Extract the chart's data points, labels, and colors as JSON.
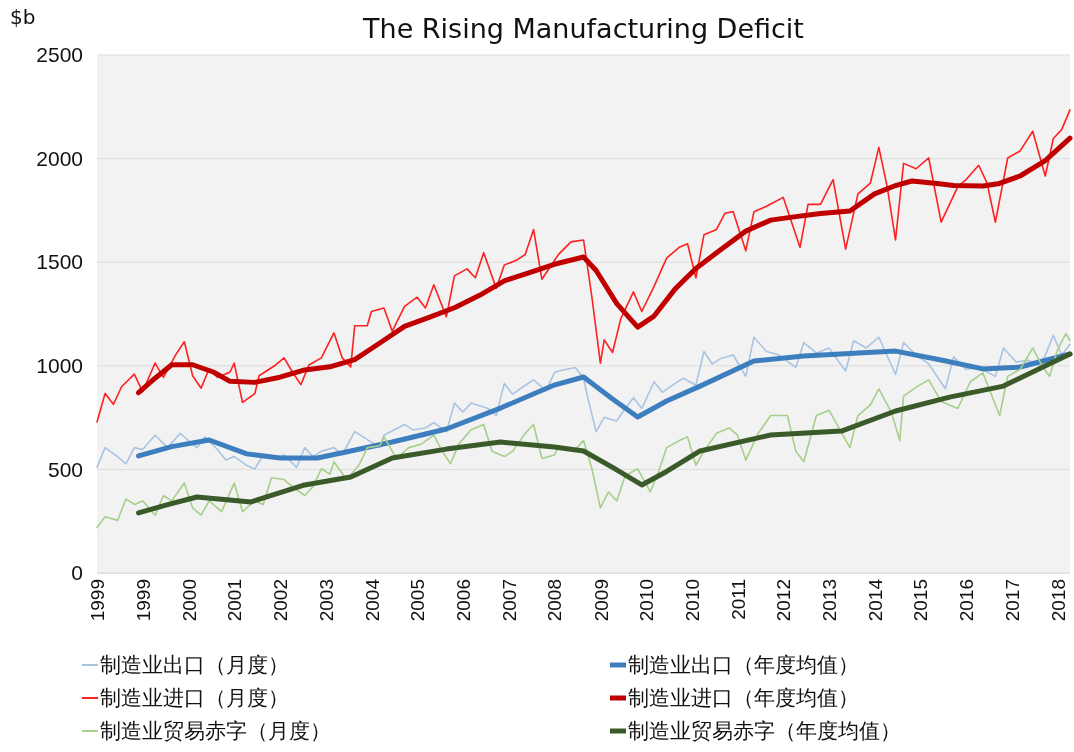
{
  "chart_data": {
    "type": "line",
    "title": "The Rising Manufacturing Deficit",
    "ylabel": "$b",
    "xlim": [
      "1999-01",
      "2018-07"
    ],
    "ylim": [
      0,
      2500
    ],
    "yticks": [
      0,
      500,
      1000,
      1500,
      2000,
      2500
    ],
    "xticks": [
      {
        "value": "1999-01",
        "label": "1999"
      },
      {
        "value": "1999-12",
        "label": "1999"
      },
      {
        "value": "2000-11",
        "label": "2000"
      },
      {
        "value": "2001-10",
        "label": "2001"
      },
      {
        "value": "2002-09",
        "label": "2002"
      },
      {
        "value": "2003-08",
        "label": "2003"
      },
      {
        "value": "2004-07",
        "label": "2004"
      },
      {
        "value": "2005-06",
        "label": "2005"
      },
      {
        "value": "2006-05",
        "label": "2006"
      },
      {
        "value": "2007-04",
        "label": "2007"
      },
      {
        "value": "2008-03",
        "label": "2008"
      },
      {
        "value": "2009-02",
        "label": "2009"
      },
      {
        "value": "2010-01",
        "label": "2010"
      },
      {
        "value": "2010-12",
        "label": "2010"
      },
      {
        "value": "2011-11",
        "label": "2011"
      },
      {
        "value": "2012-10",
        "label": "2012"
      },
      {
        "value": "2013-09",
        "label": "2013"
      },
      {
        "value": "2014-08",
        "label": "2014"
      },
      {
        "value": "2015-07",
        "label": "2015"
      },
      {
        "value": "2016-06",
        "label": "2016"
      },
      {
        "value": "2017-05",
        "label": "2017"
      },
      {
        "value": "2018-04",
        "label": "2018"
      }
    ],
    "grid": "y",
    "legend": "bottom",
    "marker": "none",
    "series": [
      {
        "name": "制造业出口（月度）",
        "color": "#a9c4e3",
        "x": [
          "1999-01",
          "1999-03",
          "1999-06",
          "1999-08",
          "1999-10",
          "1999-12",
          "2000-03",
          "2000-06",
          "2000-09",
          "2000-11",
          "2001-01",
          "2001-03",
          "2001-06",
          "2001-08",
          "2001-10",
          "2002-01",
          "2002-03",
          "2002-05",
          "2002-08",
          "2002-10",
          "2003-01",
          "2003-03",
          "2003-05",
          "2003-07",
          "2003-10",
          "2003-12",
          "2004-03",
          "2004-05",
          "2004-09",
          "2004-10",
          "2005-03",
          "2005-05",
          "2005-08",
          "2005-10",
          "2006-01",
          "2006-03",
          "2006-05",
          "2006-07",
          "2006-11",
          "2007-01",
          "2007-03",
          "2007-05",
          "2007-08",
          "2007-10",
          "2008-01",
          "2008-03",
          "2008-04",
          "2008-08",
          "2008-10",
          "2008-11",
          "2009-01",
          "2009-03",
          "2009-06",
          "2009-08",
          "2009-10",
          "2009-12",
          "2010-03",
          "2010-05",
          "2010-08",
          "2010-10",
          "2011-01",
          "2011-03",
          "2011-05",
          "2011-07",
          "2011-10",
          "2012-01",
          "2012-03",
          "2012-06",
          "2012-09",
          "2013-01",
          "2013-03",
          "2013-06",
          "2013-09",
          "2014-01",
          "2014-03",
          "2014-06",
          "2014-09",
          "2015-01",
          "2015-03",
          "2015-06",
          "2015-09",
          "2016-01",
          "2016-03",
          "2016-06",
          "2016-09",
          "2017-01",
          "2017-03",
          "2017-06",
          "2017-09",
          "2017-12",
          "2018-03",
          "2018-05",
          "2018-07"
        ],
        "values": [
          510,
          605,
          562,
          527,
          605,
          596,
          665,
          605,
          674,
          639,
          605,
          657,
          596,
          545,
          562,
          519,
          502,
          570,
          553,
          570,
          510,
          605,
          562,
          588,
          605,
          570,
          682,
          657,
          605,
          665,
          717,
          691,
          700,
          726,
          682,
          820,
          777,
          820,
          794,
          760,
          915,
          863,
          906,
          932,
          880,
          966,
          975,
          992,
          940,
          846,
          682,
          751,
          734,
          794,
          846,
          794,
          923,
          872,
          915,
          940,
          906,
          1069,
          1009,
          1035,
          1052,
          949,
          1138,
          1069,
          1052,
          992,
          1112,
          1061,
          1086,
          975,
          1121,
          1086,
          1138,
          958,
          1112,
          1052,
          1009,
          889,
          1043,
          983,
          992,
          949,
          1086,
          1018,
          1026,
          1000,
          1147,
          1052,
          1104
        ]
      },
      {
        "name": "制造业出口（年度均值）",
        "color": "#3d7ebf",
        "x": [
          "1999-11",
          "2000-07",
          "2001-04",
          "2002-01",
          "2002-09",
          "2003-06",
          "2004-02",
          "2004-12",
          "2006-01",
          "2007-02",
          "2008-03",
          "2008-10",
          "2009-05",
          "2009-11",
          "2010-06",
          "2011-02",
          "2012-03",
          "2013-03",
          "2015-01",
          "2015-12",
          "2016-10",
          "2017-07",
          "2018-07"
        ],
        "values": [
          565,
          610,
          642,
          575,
          555,
          555,
          589,
          632,
          695,
          796,
          907,
          946,
          840,
          753,
          830,
          902,
          1023,
          1047,
          1071,
          1028,
          985,
          994,
          1057
        ]
      },
      {
        "name": "制造业进口（月度）",
        "color": "#ff2020",
        "x": [
          "1999-01",
          "1999-03",
          "1999-05",
          "1999-07",
          "1999-10",
          "1999-12",
          "2000-03",
          "2000-05",
          "2000-08",
          "2000-10",
          "2000-12",
          "2001-02",
          "2001-04",
          "2001-06",
          "2001-09",
          "2001-10",
          "2001-12",
          "2002-03",
          "2002-04",
          "2002-08",
          "2002-10",
          "2002-12",
          "2003-02",
          "2003-04",
          "2003-07",
          "2003-10",
          "2003-12",
          "2004-02",
          "2004-03",
          "2004-06",
          "2004-07",
          "2004-10",
          "2004-12",
          "2005-03",
          "2005-06",
          "2005-08",
          "2005-10",
          "2006-01",
          "2006-03",
          "2006-06",
          "2006-08",
          "2006-10",
          "2007-01",
          "2007-03",
          "2007-06",
          "2007-08",
          "2007-10",
          "2007-12",
          "2008-04",
          "2008-07",
          "2008-10",
          "2008-12",
          "2009-02",
          "2009-03",
          "2009-05",
          "2009-07",
          "2009-10",
          "2009-12",
          "2010-03",
          "2010-06",
          "2010-09",
          "2010-11",
          "2011-01",
          "2011-03",
          "2011-06",
          "2011-08",
          "2011-10",
          "2012-01",
          "2012-03",
          "2012-06",
          "2012-10",
          "2013-02",
          "2013-04",
          "2013-07",
          "2013-10",
          "2014-01",
          "2014-04",
          "2014-07",
          "2014-09",
          "2014-11",
          "2015-01",
          "2015-03",
          "2015-06",
          "2015-09",
          "2015-12",
          "2016-04",
          "2016-06",
          "2016-09",
          "2016-11",
          "2017-01",
          "2017-04",
          "2017-07",
          "2017-10",
          "2018-01",
          "2018-03",
          "2018-05",
          "2018-07"
        ],
        "values": [
          729,
          866,
          814,
          900,
          960,
          875,
          1013,
          944,
          1055,
          1116,
          952,
          892,
          987,
          944,
          970,
          1013,
          823,
          866,
          952,
          1004,
          1038,
          970,
          909,
          1004,
          1038,
          1159,
          1038,
          995,
          1193,
          1193,
          1262,
          1279,
          1167,
          1287,
          1331,
          1279,
          1391,
          1236,
          1434,
          1468,
          1425,
          1546,
          1374,
          1486,
          1511,
          1537,
          1658,
          1418,
          1538,
          1598,
          1607,
          1331,
          1013,
          1125,
          1064,
          1228,
          1357,
          1262,
          1383,
          1520,
          1572,
          1589,
          1425,
          1632,
          1658,
          1736,
          1744,
          1555,
          1744,
          1770,
          1813,
          1572,
          1779,
          1779,
          1899,
          1563,
          1830,
          1882,
          2054,
          1865,
          1607,
          1977,
          1951,
          2003,
          1693,
          1865,
          1899,
          1968,
          1882,
          1693,
          2003,
          2037,
          2132,
          1916,
          2097,
          2140,
          2235
        ]
      },
      {
        "name": "制造业进口（年度均值）",
        "color": "#c00000",
        "x": [
          "1999-11",
          "2000-03",
          "2000-07",
          "2000-12",
          "2001-05",
          "2001-09",
          "2002-03",
          "2002-09",
          "2003-03",
          "2003-09",
          "2004-03",
          "2004-09",
          "2005-03",
          "2005-09",
          "2006-03",
          "2006-09",
          "2007-03",
          "2007-09",
          "2008-03",
          "2008-10",
          "2009-01",
          "2009-06",
          "2009-11",
          "2010-03",
          "2010-08",
          "2011-01",
          "2011-07",
          "2012-01",
          "2012-07",
          "2013-01",
          "2013-07",
          "2014-02",
          "2014-08",
          "2015-01",
          "2015-05",
          "2015-11",
          "2016-03",
          "2016-10",
          "2017-02",
          "2017-07",
          "2018-01",
          "2018-07"
        ],
        "values": [
          870,
          940,
          1005,
          1005,
          970,
          925,
          920,
          945,
          980,
          995,
          1030,
          1110,
          1190,
          1235,
          1280,
          1340,
          1410,
          1450,
          1490,
          1525,
          1460,
          1300,
          1187,
          1240,
          1370,
          1470,
          1560,
          1650,
          1703,
          1720,
          1735,
          1747,
          1830,
          1870,
          1892,
          1880,
          1870,
          1868,
          1880,
          1916,
          1990,
          2099
        ]
      },
      {
        "name": "制造业贸易赤字（月度）",
        "color": "#a6cf8a",
        "x": [
          "1999-01",
          "1999-03",
          "1999-06",
          "1999-08",
          "1999-10",
          "1999-12",
          "2000-03",
          "2000-05",
          "2000-07",
          "2000-10",
          "2000-12",
          "2001-02",
          "2001-04",
          "2001-07",
          "2001-10",
          "2001-12",
          "2002-03",
          "2002-05",
          "2002-07",
          "2002-10",
          "2002-12",
          "2003-03",
          "2003-05",
          "2003-07",
          "2003-09",
          "2003-10",
          "2004-01",
          "2004-04",
          "2004-06",
          "2004-09",
          "2004-10",
          "2005-01",
          "2005-04",
          "2005-07",
          "2005-10",
          "2005-12",
          "2006-02",
          "2006-04",
          "2006-07",
          "2006-10",
          "2006-12",
          "2007-03",
          "2007-05",
          "2007-08",
          "2007-10",
          "2007-12",
          "2008-03",
          "2008-04",
          "2008-08",
          "2008-10",
          "2008-12",
          "2009-02",
          "2009-04",
          "2009-06",
          "2009-08",
          "2009-11",
          "2010-02",
          "2010-04",
          "2010-06",
          "2010-09",
          "2010-11",
          "2011-01",
          "2011-03",
          "2011-06",
          "2011-09",
          "2011-11",
          "2012-01",
          "2012-04",
          "2012-07",
          "2012-11",
          "2013-01",
          "2013-03",
          "2013-06",
          "2013-09",
          "2014-02",
          "2014-04",
          "2014-07",
          "2014-09",
          "2014-12",
          "2015-02",
          "2015-03",
          "2015-06",
          "2015-09",
          "2015-12",
          "2016-04",
          "2016-07",
          "2016-10",
          "2017-02",
          "2017-04",
          "2017-07",
          "2017-10",
          "2017-12",
          "2018-02",
          "2018-04",
          "2018-06",
          "2018-07"
        ],
        "values": [
          220,
          271,
          254,
          357,
          331,
          348,
          279,
          374,
          348,
          434,
          314,
          279,
          348,
          296,
          434,
          296,
          348,
          331,
          460,
          451,
          417,
          374,
          417,
          503,
          477,
          537,
          451,
          520,
          605,
          614,
          657,
          553,
          605,
          622,
          665,
          588,
          527,
          622,
          691,
          717,
          588,
          562,
          588,
          674,
          717,
          553,
          570,
          605,
          596,
          639,
          503,
          314,
          391,
          348,
          469,
          503,
          391,
          486,
          605,
          639,
          657,
          520,
          588,
          674,
          700,
          665,
          545,
          674,
          760,
          760,
          588,
          537,
          760,
          786,
          605,
          760,
          811,
          889,
          777,
          639,
          854,
          897,
          932,
          828,
          794,
          923,
          966,
          760,
          949,
          983,
          1086,
          1009,
          949,
          1078,
          1155,
          1121
        ]
      },
      {
        "name": "制造业贸易赤字（年度均值）",
        "color": "#3a5a2a",
        "x": [
          "1999-11",
          "2000-06",
          "2001-01",
          "2002-02",
          "2003-03",
          "2004-02",
          "2004-12",
          "2006-01",
          "2007-02",
          "2008-03",
          "2008-10",
          "2009-05",
          "2009-12",
          "2010-06",
          "2011-02",
          "2012-07",
          "2013-12",
          "2015-01",
          "2016-02",
          "2017-03",
          "2018-07"
        ],
        "values": [
          290,
          330,
          367,
          343,
          425,
          463,
          555,
          598,
          632,
          608,
          589,
          510,
          425,
          490,
          589,
          666,
          685,
          782,
          849,
          902,
          1057
        ]
      }
    ]
  }
}
